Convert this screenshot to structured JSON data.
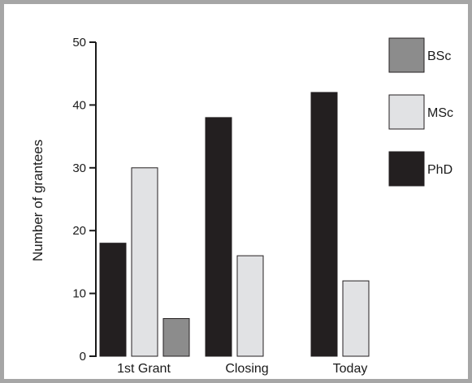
{
  "chart_data": {
    "type": "bar",
    "title": "",
    "xlabel": "",
    "ylabel": "Number of grantees",
    "ylim": [
      0,
      50
    ],
    "yticks": [
      0,
      10,
      20,
      30,
      40,
      50
    ],
    "categories": [
      "1st Grant",
      "Closing",
      "Today"
    ],
    "series": [
      {
        "name": "PhD",
        "values": [
          18,
          38,
          42
        ],
        "color": "#231f20"
      },
      {
        "name": "MSc",
        "values": [
          30,
          16,
          12
        ],
        "color": "#e1e2e4"
      },
      {
        "name": "BSc",
        "values": [
          6,
          0,
          0
        ],
        "color": "#8c8c8c"
      }
    ],
    "legend": {
      "placement": "top-right",
      "order": [
        "BSc",
        "MSc",
        "PhD"
      ]
    },
    "grid": false,
    "frame_color": "#a6a6a6"
  }
}
